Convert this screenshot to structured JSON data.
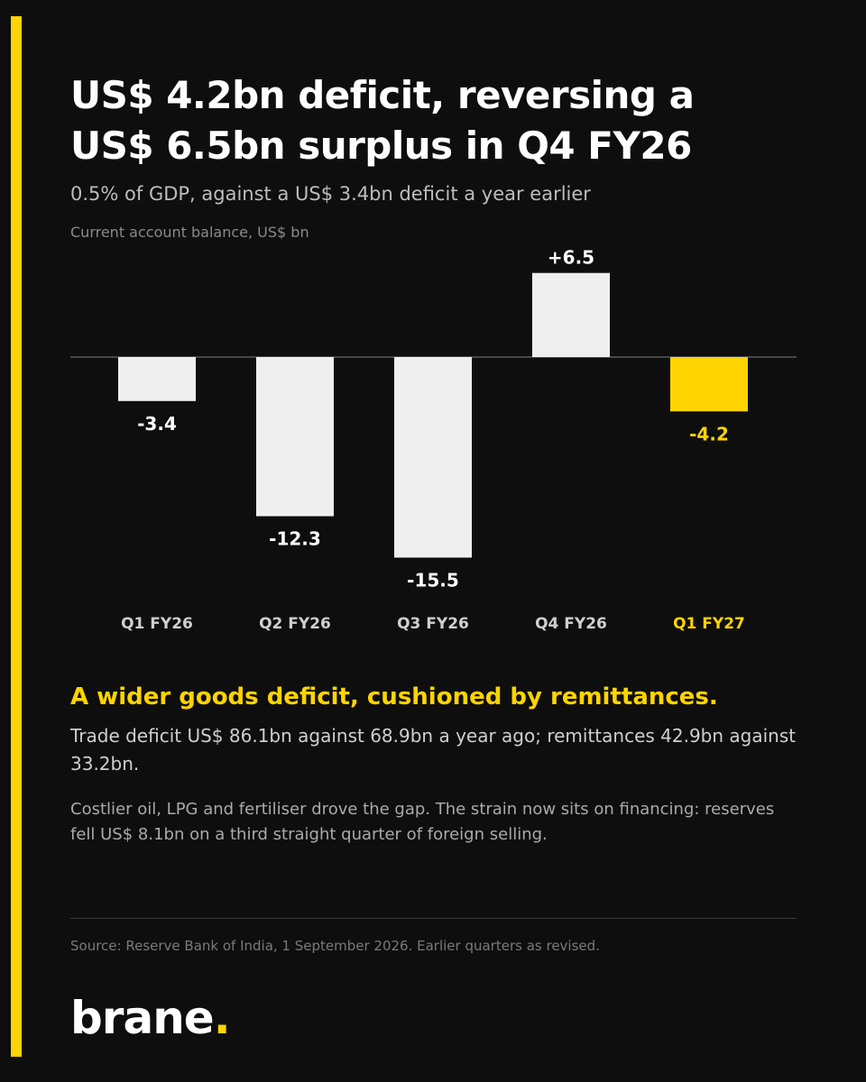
{
  "colors": {
    "background": "#0e0e0e",
    "accent": "#ffd400",
    "bar": "#efefef",
    "text": "#ffffff",
    "zero_line": "#5a5a5a"
  },
  "headline_line1": "US$ 4.2bn deficit, reversing a",
  "headline_line2": "US$ 6.5bn surplus in Q4 FY26",
  "subtitle": "0.5% of GDP, against a US$ 3.4bn deficit a year earlier",
  "chart_data": {
    "type": "bar",
    "ylabel": "Current account balance, US$ bn",
    "categories": [
      "Q1 FY26",
      "Q2 FY26",
      "Q3 FY26",
      "Q4 FY26",
      "Q1 FY27"
    ],
    "values": [
      -3.4,
      -12.3,
      -15.5,
      6.5,
      -4.2
    ],
    "data_labels": [
      "-3.4",
      "-12.3",
      "-15.5",
      "+6.5",
      "-4.2"
    ],
    "highlight_index": 4,
    "ylim": [
      -15.5,
      6.5
    ],
    "grid": false
  },
  "insight": {
    "heading": "A wider goods deficit, cushioned by remittances.",
    "para1": "Trade deficit US$ 86.1bn against 68.9bn a year ago; remittances 42.9bn against 33.2bn.",
    "para2": "Costlier oil, LPG and fertiliser drove the gap. The strain now sits on financing: reserves fell US$ 8.1bn on a third straight quarter of foreign selling."
  },
  "source": "Source: Reserve Bank of India, 1 September 2026. Earlier quarters as revised.",
  "brand": {
    "name": "brane",
    "dot": "."
  }
}
